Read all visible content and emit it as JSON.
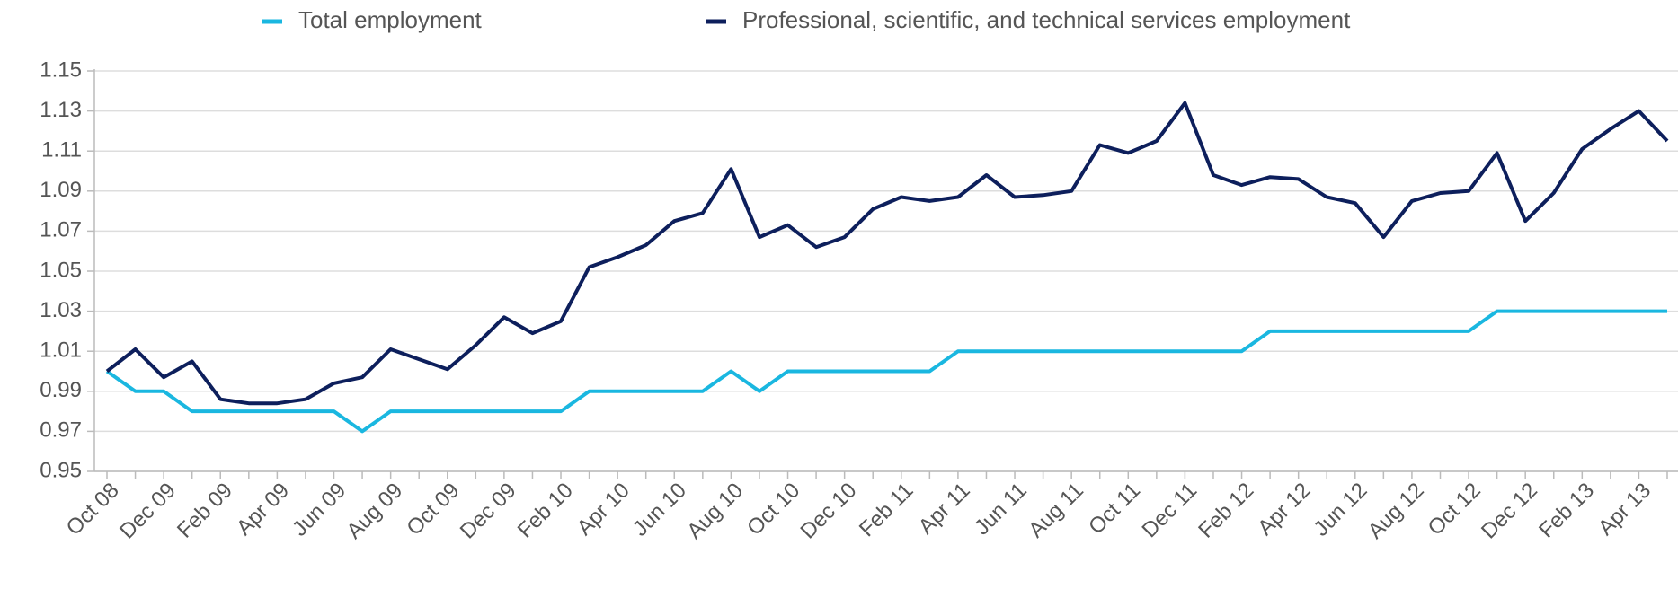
{
  "chart_data": {
    "type": "line",
    "categories": [
      "Oct 08",
      null,
      "Dec 09",
      null,
      "Feb 09",
      null,
      "Apr 09",
      null,
      "Jun 09",
      null,
      "Aug 09",
      null,
      "Oct 09",
      null,
      "Dec 09",
      null,
      "Feb 10",
      null,
      "Apr 10",
      null,
      "Jun 10",
      null,
      "Aug 10",
      null,
      "Oct 10",
      null,
      "Dec 10",
      null,
      "Feb 11",
      null,
      "Apr 11",
      null,
      "Jun 11",
      null,
      "Aug 11",
      null,
      "Oct 11",
      null,
      "Dec 11",
      null,
      "Feb 12",
      null,
      "Apr 12",
      null,
      "Jun 12",
      null,
      "Aug 12",
      null,
      "Oct 12",
      null,
      "Dec 12",
      null,
      "Feb 13",
      null,
      "Apr 13",
      null
    ],
    "series": [
      {
        "name": "Total employment",
        "color": "#1ab7e0",
        "values": [
          1.0,
          0.99,
          0.99,
          0.98,
          0.98,
          0.98,
          0.98,
          0.98,
          0.98,
          0.97,
          0.98,
          0.98,
          0.98,
          0.98,
          0.98,
          0.98,
          0.98,
          0.99,
          0.99,
          0.99,
          0.99,
          0.99,
          1.0,
          0.99,
          1.0,
          1.0,
          1.0,
          1.0,
          1.0,
          1.0,
          1.01,
          1.01,
          1.01,
          1.01,
          1.01,
          1.01,
          1.01,
          1.01,
          1.01,
          1.01,
          1.01,
          1.02,
          1.02,
          1.02,
          1.02,
          1.02,
          1.02,
          1.02,
          1.02,
          1.03,
          1.03,
          1.03,
          1.03,
          1.03,
          1.03,
          1.03
        ]
      },
      {
        "name": "Professional, scientific, and technical services employment",
        "color": "#0d1f5c",
        "values": [
          1.0,
          1.011,
          0.997,
          1.005,
          0.986,
          0.984,
          0.984,
          0.986,
          0.994,
          0.997,
          1.011,
          1.006,
          1.001,
          1.013,
          1.027,
          1.019,
          1.025,
          1.052,
          1.057,
          1.063,
          1.075,
          1.079,
          1.101,
          1.067,
          1.073,
          1.062,
          1.067,
          1.081,
          1.087,
          1.085,
          1.087,
          1.098,
          1.087,
          1.088,
          1.09,
          1.113,
          1.109,
          1.115,
          1.134,
          1.098,
          1.093,
          1.097,
          1.096,
          1.087,
          1.084,
          1.067,
          1.085,
          1.089,
          1.09,
          1.109,
          1.075,
          1.089,
          1.111,
          1.121,
          1.13,
          1.115
        ]
      }
    ],
    "ylim": [
      0.95,
      1.15
    ],
    "yticks": [
      0.95,
      0.97,
      0.99,
      1.01,
      1.03,
      1.05,
      1.07,
      1.09,
      1.11,
      1.13,
      1.15
    ],
    "grid": true,
    "legend": "top"
  }
}
